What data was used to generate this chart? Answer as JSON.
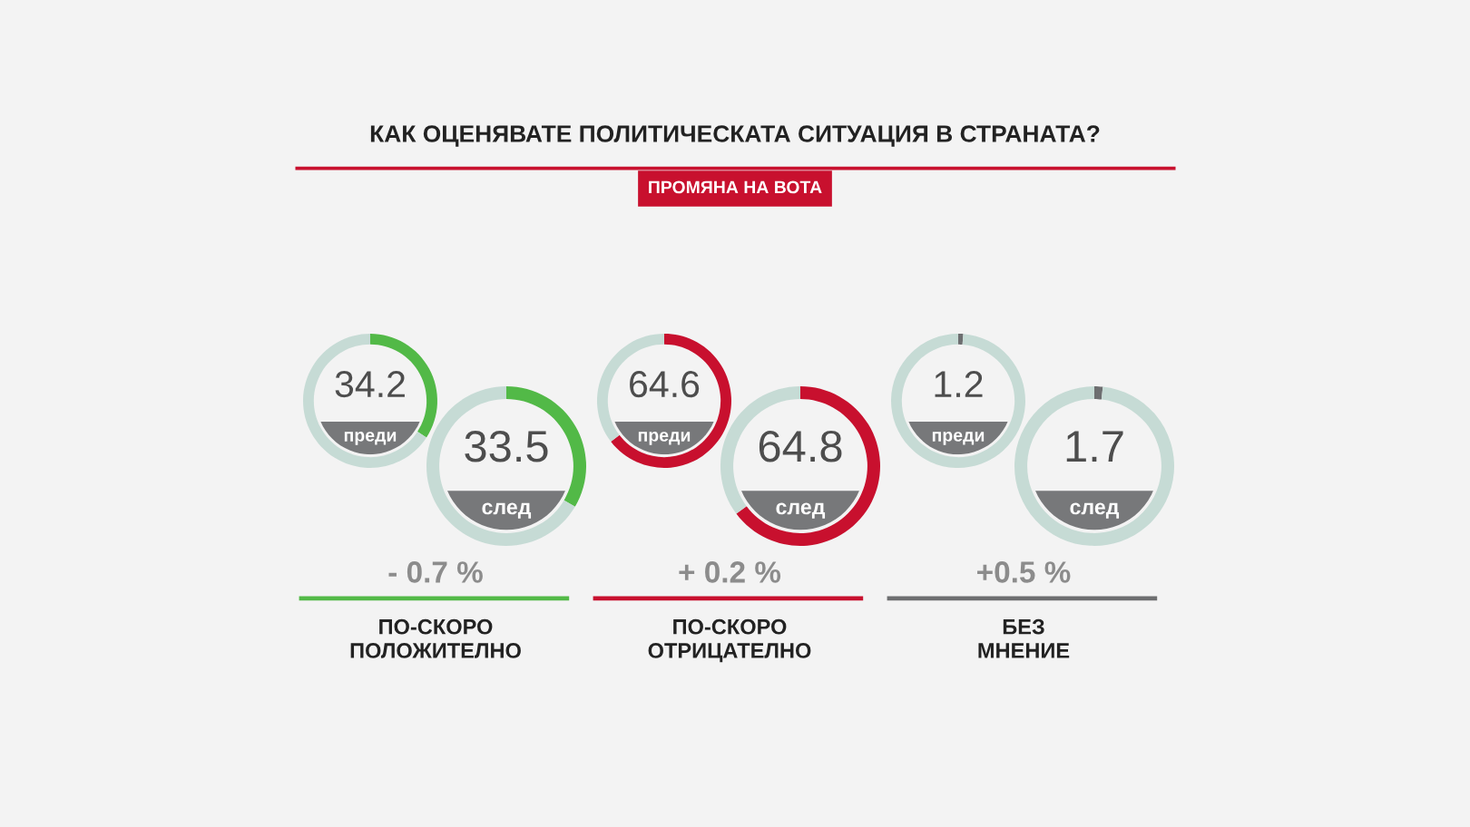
{
  "chart_data": [
    {
      "type": "other",
      "title": "КАК ОЦЕНЯВАТЕ ПОЛИТИЧЕСКАТА СИТУАЦИЯ В СТРАНАТА?",
      "subtitle": "ПРОМЯНА НА ВОТА"
    },
    {
      "type": "donut",
      "title": "преди",
      "categories": [
        null,
        null
      ],
      "values": [
        34.2,
        65.8
      ],
      "colors": [
        "#52b947",
        "#c6dbd5"
      ],
      "value_labels": [
        "34.2",
        null
      ]
    },
    {
      "type": "donut",
      "title": "след",
      "categories": [
        null,
        null
      ],
      "values": [
        33.5,
        66.5
      ],
      "colors": [
        "#52b947",
        "#c6dbd5"
      ],
      "value_labels": [
        "33.5",
        null
      ]
    },
    {
      "type": "donut",
      "title": "преди",
      "categories": [
        null,
        null
      ],
      "values": [
        64.6,
        35.4
      ],
      "colors": [
        "#c8102e",
        "#c6dbd5"
      ],
      "value_labels": [
        "64.6",
        null
      ]
    },
    {
      "type": "donut",
      "title": "след",
      "categories": [
        null,
        null
      ],
      "values": [
        64.8,
        35.2
      ],
      "colors": [
        "#c8102e",
        "#c6dbd5"
      ],
      "value_labels": [
        "64.8",
        null
      ]
    },
    {
      "type": "donut",
      "title": "преди",
      "categories": [
        null,
        null
      ],
      "values": [
        1.2,
        98.8
      ],
      "colors": [
        "#6d6e70",
        "#c6dbd5"
      ],
      "value_labels": [
        "1.2",
        null
      ]
    },
    {
      "type": "donut",
      "title": "след",
      "categories": [
        null,
        null
      ],
      "values": [
        1.7,
        98.3
      ],
      "colors": [
        "#6d6e70",
        "#c6dbd5"
      ],
      "value_labels": [
        "1.7",
        null
      ]
    },
    {
      "type": "other",
      "title": "ПО-СКОРО\nПОЛОЖИТЕЛНО",
      "annotations": [
        "- 0.7 %"
      ]
    },
    {
      "type": "other",
      "title": "ПО-СКОРО\nОТРИЦАТЕЛНО",
      "annotations": [
        "+ 0.2 %"
      ]
    },
    {
      "type": "other",
      "title": "БЕЗ\nМНЕНИЕ",
      "annotations": [
        "+0.5 %"
      ]
    }
  ]
}
